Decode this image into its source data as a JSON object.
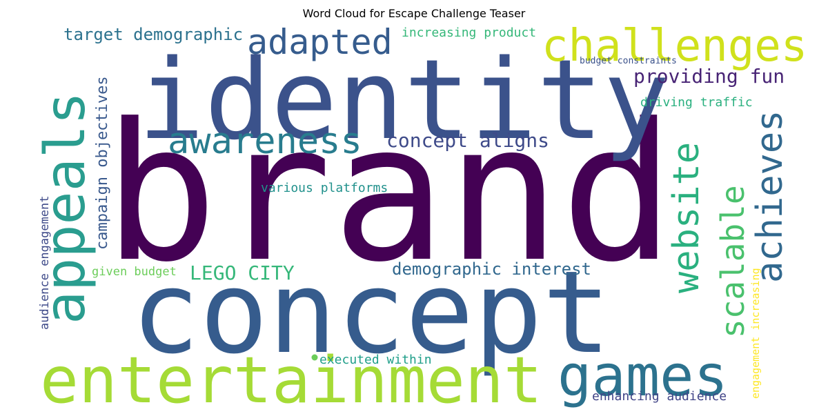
{
  "title": "Word Cloud for Escape Challenge Teaser",
  "words": [
    {
      "text": "brand",
      "color": "#440154",
      "vertical": false
    },
    {
      "text": "identity",
      "color": "#3b528b",
      "vertical": false
    },
    {
      "text": "concept",
      "color": "#365c8d",
      "vertical": false
    },
    {
      "text": "entertainment",
      "color": "#a5db36",
      "vertical": false
    },
    {
      "text": "games",
      "color": "#2c728e",
      "vertical": false
    },
    {
      "text": "challenges",
      "color": "#d0e11c",
      "vertical": false
    },
    {
      "text": "appeals",
      "color": "#2a9d8f",
      "vertical": true
    },
    {
      "text": "adapted",
      "color": "#365c8d",
      "vertical": false
    },
    {
      "text": "awareness",
      "color": "#287c8e",
      "vertical": false
    },
    {
      "text": "website",
      "color": "#2ab07f",
      "vertical": true
    },
    {
      "text": "achieves",
      "color": "#31688e",
      "vertical": true
    },
    {
      "text": "scalable",
      "color": "#4ac16d",
      "vertical": true
    },
    {
      "text": "providing fun",
      "color": "#482475",
      "vertical": false
    },
    {
      "text": "concept aligns",
      "color": "#3e4a89",
      "vertical": false
    },
    {
      "text": "target demographic",
      "color": "#2c728e",
      "vertical": false
    },
    {
      "text": "campaign objectives",
      "color": "#38588c",
      "vertical": true
    },
    {
      "text": "LEGO CITY",
      "color": "#35b779",
      "vertical": false
    },
    {
      "text": "demographic interest",
      "color": "#31688e",
      "vertical": false
    },
    {
      "text": "increasing product",
      "color": "#35b779",
      "vertical": false
    },
    {
      "text": "driving traffic",
      "color": "#2ab07f",
      "vertical": false
    },
    {
      "text": "various platforms",
      "color": "#21918c",
      "vertical": false
    },
    {
      "text": "audience engagement",
      "color": "#3e4a89",
      "vertical": true
    },
    {
      "text": "given budget",
      "color": "#6ccd5a",
      "vertical": false
    },
    {
      "text": "executed within",
      "color": "#1f9e89",
      "vertical": false
    },
    {
      "text": "enhancing audience",
      "color": "#414487",
      "vertical": false
    },
    {
      "text": "engagement increasing",
      "color": "#fde725",
      "vertical": true
    },
    {
      "text": "budget constraints",
      "color": "#3b528b",
      "vertical": false
    }
  ]
}
